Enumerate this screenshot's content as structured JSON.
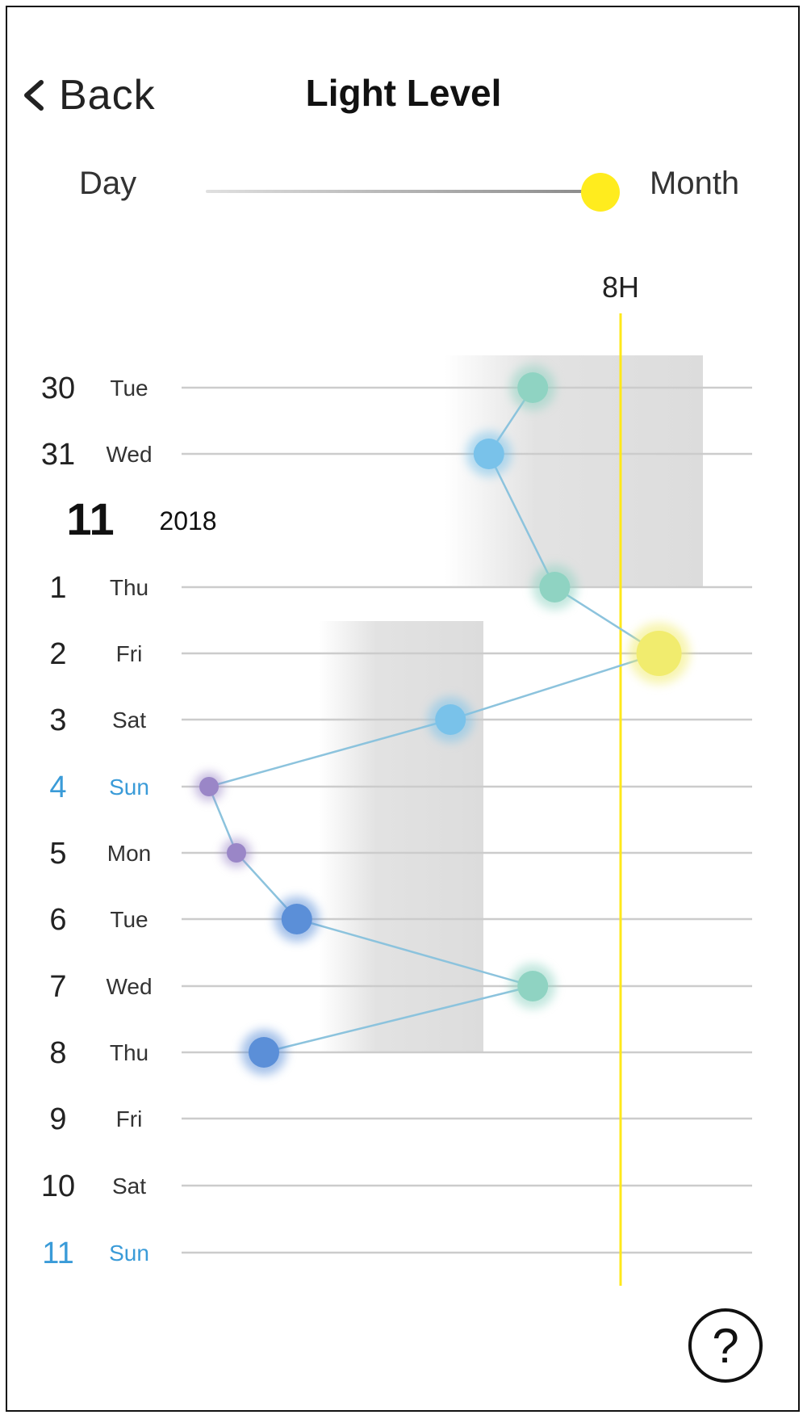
{
  "header": {
    "back_label": "Back",
    "title": "Light Level"
  },
  "toggle": {
    "left_label": "Day",
    "right_label": "Month",
    "selected": "Month",
    "knob_color": "#ffec1e"
  },
  "month_marker": {
    "month": "11",
    "year": "2018"
  },
  "help_label": "?",
  "colors": {
    "reference_line": "#ffe81a",
    "connector": "#8cc3dd",
    "sunday_text": "#3a9bd8",
    "gridline": "#cccccc",
    "shade": "#d6d6d6"
  },
  "chart_data": {
    "type": "line",
    "orientation": "vertical-time",
    "reference_line": {
      "value": 8,
      "label": "8H"
    },
    "rows": [
      {
        "num": "30",
        "day": "Tue",
        "sunday": false
      },
      {
        "num": "31",
        "day": "Wed",
        "sunday": false
      },
      {
        "num": "1",
        "day": "Thu",
        "sunday": false
      },
      {
        "num": "2",
        "day": "Fri",
        "sunday": false
      },
      {
        "num": "3",
        "day": "Sat",
        "sunday": false
      },
      {
        "num": "4",
        "day": "Sun",
        "sunday": true
      },
      {
        "num": "5",
        "day": "Mon",
        "sunday": false
      },
      {
        "num": "6",
        "day": "Tue",
        "sunday": false
      },
      {
        "num": "7",
        "day": "Wed",
        "sunday": false
      },
      {
        "num": "8",
        "day": "Thu",
        "sunday": false
      },
      {
        "num": "9",
        "day": "Fri",
        "sunday": false
      },
      {
        "num": "10",
        "day": "Sat",
        "sunday": false
      },
      {
        "num": "11",
        "day": "Sun",
        "sunday": true
      }
    ],
    "points": [
      {
        "day": "30",
        "hours": 6.4,
        "color": "#8fd3c2",
        "level": "medium"
      },
      {
        "day": "31",
        "hours": 5.6,
        "color": "#79c2ea",
        "level": "medium"
      },
      {
        "day": "1",
        "hours": 6.8,
        "color": "#8fd3c2",
        "level": "medium"
      },
      {
        "day": "2",
        "hours": 8.7,
        "color": "#f1ec6e",
        "level": "large"
      },
      {
        "day": "3",
        "hours": 4.9,
        "color": "#79c2ea",
        "level": "medium"
      },
      {
        "day": "4",
        "hours": 0.5,
        "color": "#9a86c7",
        "level": "small"
      },
      {
        "day": "5",
        "hours": 1.0,
        "color": "#9a86c7",
        "level": "small"
      },
      {
        "day": "6",
        "hours": 2.1,
        "color": "#5b8fd8",
        "level": "medium"
      },
      {
        "day": "7",
        "hours": 6.4,
        "color": "#8fd3c2",
        "level": "medium"
      },
      {
        "day": "8",
        "hours": 1.5,
        "color": "#5b8fd8",
        "level": "medium"
      }
    ],
    "shaded_weeks": [
      {
        "from": "30",
        "to": "1",
        "start_hours": 4.8,
        "end_hours": 9.5
      },
      {
        "from": "2",
        "to": "8",
        "start_hours": 2.5,
        "end_hours": 5.5
      }
    ]
  }
}
